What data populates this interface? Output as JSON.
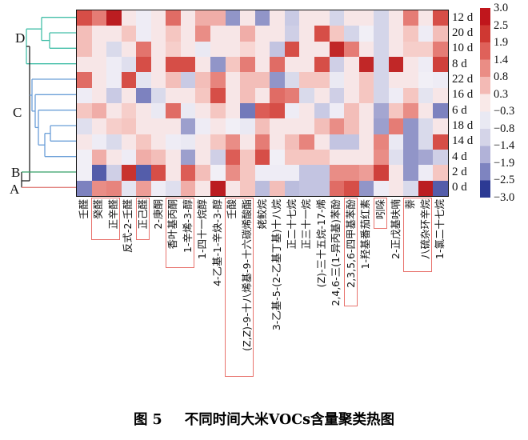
{
  "figure": {
    "caption_prefix": "图 5",
    "caption_title": "不同时间大米VOCs含量聚类热图"
  },
  "chart_data": {
    "type": "heatmap",
    "title": "不同时间大米VOCs含量聚类热图",
    "rows": [
      "12 d",
      "20 d",
      "10 d",
      "8 d",
      "22 d",
      "16 d",
      "6 d",
      "18 d",
      "14 d",
      "4 d",
      "2 d",
      "0 d"
    ],
    "columns": [
      "壬醛",
      "癸醛",
      "正辛醛",
      "反式-2-壬醛",
      "正己醛",
      "2-庚酮",
      "香叶基丙酮",
      "1-辛烯-3-醇",
      "1-四十一烷醇",
      "4-乙基-1-辛炔-3-醇",
      "壬酸",
      "(Z,Z)-9-十八烯基-9-十六碳烯酸酯",
      "姥鲛烷",
      "3-乙基-5-(2-乙基丁基)十八烷",
      "正二十七烷",
      "正三十一烷",
      "(Z)-三十五烷-17-烯",
      "2,4,6-三(1-异丙基)苯酚",
      "2,3,5,6-四甲基苯酚",
      "1-羟基番茄红素",
      "吲哚",
      "2-正戊基呋喃",
      "萘",
      "八硫杂环辛烷",
      "1-氯二十七烷"
    ],
    "values": [
      [
        2,
        1.4,
        2.8,
        0,
        -0.5,
        0,
        1.6,
        0,
        0.8,
        0.8,
        -2,
        0,
        -2,
        0,
        -1.3,
        0,
        0,
        -1.1,
        0,
        0,
        -1.1,
        0,
        1.4,
        0,
        2
      ],
      [
        0.6,
        0,
        0,
        0.5,
        -0.5,
        0,
        0.5,
        0,
        1.2,
        0,
        0,
        0.8,
        0,
        0,
        -1.2,
        0,
        2,
        0.5,
        -1.1,
        -0.4,
        -1.1,
        0,
        0.5,
        -0.5,
        0.6
      ],
      [
        0.6,
        0,
        -1,
        0,
        1.5,
        0,
        0.4,
        0,
        -0.6,
        0,
        0,
        0.3,
        0,
        -1.4,
        2,
        0,
        0,
        2.6,
        1.4,
        0,
        -1.1,
        0,
        0.4,
        0.4,
        1.4
      ],
      [
        0,
        0,
        -0.5,
        -0.9,
        2,
        0,
        2,
        2,
        0,
        -2,
        0.5,
        1.4,
        0,
        1.6,
        0,
        0,
        2,
        -1.2,
        0,
        2.6,
        -1.1,
        2.6,
        0,
        -0.5,
        2.2
      ],
      [
        1.6,
        0,
        -0.5,
        2,
        -0.8,
        0,
        0.6,
        -1.3,
        0.6,
        1.3,
        0,
        0.6,
        0.6,
        -2,
        -1,
        0.5,
        0.5,
        -0.6,
        0,
        0.5,
        -1.1,
        0,
        0,
        -0.4,
        -0.5
      ],
      [
        -0.5,
        0,
        -1.3,
        0,
        -2.2,
        -1,
        0,
        0,
        0.5,
        2,
        0,
        0.6,
        0,
        1.6,
        1.4,
        -1,
        0,
        -1.2,
        0,
        0.5,
        -1.1,
        -0.5,
        0.5,
        -0.8,
        0
      ],
      [
        0.5,
        0.8,
        0,
        0.4,
        0,
        -0.6,
        1.6,
        -0.6,
        0,
        0.5,
        0,
        -2.3,
        1.8,
        2,
        -0.5,
        0,
        -1.3,
        -0.5,
        0.6,
        0,
        -1.8,
        0.5,
        1.2,
        0,
        -2.2
      ],
      [
        -0.9,
        0,
        0.4,
        0.5,
        0,
        0,
        0,
        -1.9,
        -0.5,
        0,
        -0.4,
        -0.6,
        0.6,
        0,
        0,
        0,
        0.6,
        1.2,
        0.6,
        0,
        -1.9,
        1.4,
        -2,
        -1,
        0
      ],
      [
        0,
        -0.5,
        -1,
        0,
        0.5,
        0,
        -0.5,
        -0.6,
        0,
        0.5,
        1.2,
        0,
        1.4,
        0,
        0.6,
        1.3,
        0,
        -1.4,
        -1.4,
        0,
        1.3,
        -0.6,
        -2,
        -1,
        2
      ],
      [
        -0.4,
        0.8,
        0,
        -0.5,
        0.8,
        0.6,
        0,
        -1.9,
        0,
        -1.2,
        1.8,
        0.5,
        2,
        -0.4,
        0.5,
        0.5,
        0.5,
        0,
        0,
        0,
        1.2,
        -0.9,
        -2,
        -1.8,
        -1.2
      ],
      [
        -0.4,
        -2.6,
        -1.2,
        2.4,
        -2.6,
        2,
        0,
        1.8,
        0.6,
        -0.4,
        1.2,
        0.5,
        -0.5,
        -0.5,
        -0.5,
        -1.4,
        -1.4,
        1.2,
        1.2,
        1,
        2.2,
        0,
        -2,
        -0.5,
        0.5
      ],
      [
        -2.2,
        1.2,
        1.3,
        -0.8,
        1,
        -0.5,
        -0.9,
        0.8,
        0,
        2.8,
        0,
        0.5,
        -1.5,
        0.6,
        -1.5,
        -1.4,
        -1.4,
        1.6,
        2,
        -2,
        -0.5,
        0,
        -1,
        2.8,
        -2.6
      ]
    ],
    "value_range": [
      -3.0,
      3.0
    ],
    "colorbar_ticks": [
      "3.0",
      "2.5",
      "1.9",
      "1.4",
      "0.8",
      "0.3",
      "−0.3",
      "−0.8",
      "−1.4",
      "−1.9",
      "−2.5",
      "−3.0"
    ],
    "highlighted_column_groups": [
      [
        2,
        3
      ],
      [
        5
      ],
      [
        7,
        8
      ],
      [
        11,
        12
      ],
      [
        19
      ],
      [
        21
      ],
      [
        23,
        24
      ]
    ],
    "highlight_color": "#e8736e",
    "dendrogram_clusters": [
      {
        "label": "D",
        "color": "#45bfa9",
        "rows": [
          "12 d",
          "20 d",
          "10 d",
          "8 d"
        ]
      },
      {
        "label": "C",
        "color": "#6b9fd8",
        "rows": [
          "22 d",
          "16 d",
          "6 d",
          "18 d",
          "14 d",
          "4 d"
        ]
      },
      {
        "label": "B",
        "color": "#35a068",
        "rows": [
          "2 d"
        ]
      },
      {
        "label": "A",
        "color": "#e28480",
        "rows": [
          "0 d"
        ]
      }
    ],
    "palette": {
      "positive_max": "#b5121b",
      "zero": "#f4f3f8",
      "negative_max": "#2c3a94"
    },
    "legend_position": "right",
    "grid": false
  }
}
